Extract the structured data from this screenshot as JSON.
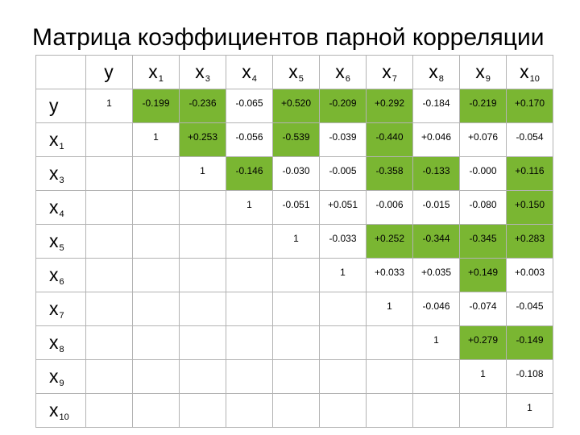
{
  "title": "Матрица коэффициентов парной корреляции",
  "highlight_color": "#7ab632",
  "variables": [
    {
      "sym": "y",
      "sub": ""
    },
    {
      "sym": "x",
      "sub": "1"
    },
    {
      "sym": "x",
      "sub": "3"
    },
    {
      "sym": "x",
      "sub": "4"
    },
    {
      "sym": "x",
      "sub": "5"
    },
    {
      "sym": "x",
      "sub": "6"
    },
    {
      "sym": "x",
      "sub": "7"
    },
    {
      "sym": "x",
      "sub": "8"
    },
    {
      "sym": "x",
      "sub": "9"
    },
    {
      "sym": "x",
      "sub": "10"
    }
  ],
  "rows": [
    [
      {
        "v": "1",
        "hl": false
      },
      {
        "v": "-0.199",
        "hl": true
      },
      {
        "v": "-0.236",
        "hl": true
      },
      {
        "v": "-0.065",
        "hl": false
      },
      {
        "v": "+0.520",
        "hl": true
      },
      {
        "v": "-0.209",
        "hl": true
      },
      {
        "v": "+0.292",
        "hl": true
      },
      {
        "v": "-0.184",
        "hl": false
      },
      {
        "v": "-0.219",
        "hl": true
      },
      {
        "v": "+0.170",
        "hl": true
      }
    ],
    [
      {
        "v": "",
        "hl": false
      },
      {
        "v": "1",
        "hl": false
      },
      {
        "v": "+0.253",
        "hl": true
      },
      {
        "v": "-0.056",
        "hl": false
      },
      {
        "v": "-0.539",
        "hl": true
      },
      {
        "v": "-0.039",
        "hl": false
      },
      {
        "v": "-0.440",
        "hl": true
      },
      {
        "v": "+0.046",
        "hl": false
      },
      {
        "v": "+0.076",
        "hl": false
      },
      {
        "v": "-0.054",
        "hl": false
      }
    ],
    [
      {
        "v": "",
        "hl": false
      },
      {
        "v": "",
        "hl": false
      },
      {
        "v": "1",
        "hl": false
      },
      {
        "v": "-0.146",
        "hl": true
      },
      {
        "v": "-0.030",
        "hl": false
      },
      {
        "v": "-0.005",
        "hl": false
      },
      {
        "v": "-0.358",
        "hl": true
      },
      {
        "v": "-0.133",
        "hl": true
      },
      {
        "v": "-0.000",
        "hl": false
      },
      {
        "v": "+0.116",
        "hl": true
      }
    ],
    [
      {
        "v": "",
        "hl": false
      },
      {
        "v": "",
        "hl": false
      },
      {
        "v": "",
        "hl": false
      },
      {
        "v": "1",
        "hl": false
      },
      {
        "v": "-0.051",
        "hl": false
      },
      {
        "v": "+0.051",
        "hl": false
      },
      {
        "v": "-0.006",
        "hl": false
      },
      {
        "v": "-0.015",
        "hl": false
      },
      {
        "v": "-0.080",
        "hl": false
      },
      {
        "v": "+0.150",
        "hl": true
      }
    ],
    [
      {
        "v": "",
        "hl": false
      },
      {
        "v": "",
        "hl": false
      },
      {
        "v": "",
        "hl": false
      },
      {
        "v": "",
        "hl": false
      },
      {
        "v": "1",
        "hl": false
      },
      {
        "v": "-0.033",
        "hl": false
      },
      {
        "v": "+0.252",
        "hl": true
      },
      {
        "v": "-0.344",
        "hl": true
      },
      {
        "v": "-0.345",
        "hl": true
      },
      {
        "v": "+0.283",
        "hl": true
      }
    ],
    [
      {
        "v": "",
        "hl": false
      },
      {
        "v": "",
        "hl": false
      },
      {
        "v": "",
        "hl": false
      },
      {
        "v": "",
        "hl": false
      },
      {
        "v": "",
        "hl": false
      },
      {
        "v": "1",
        "hl": false
      },
      {
        "v": "+0.033",
        "hl": false
      },
      {
        "v": "+0.035",
        "hl": false
      },
      {
        "v": "+0.149",
        "hl": true
      },
      {
        "v": "+0.003",
        "hl": false
      }
    ],
    [
      {
        "v": "",
        "hl": false
      },
      {
        "v": "",
        "hl": false
      },
      {
        "v": "",
        "hl": false
      },
      {
        "v": "",
        "hl": false
      },
      {
        "v": "",
        "hl": false
      },
      {
        "v": "",
        "hl": false
      },
      {
        "v": "1",
        "hl": false
      },
      {
        "v": "-0.046",
        "hl": false
      },
      {
        "v": "-0.074",
        "hl": false
      },
      {
        "v": "-0.045",
        "hl": false
      }
    ],
    [
      {
        "v": "",
        "hl": false
      },
      {
        "v": "",
        "hl": false
      },
      {
        "v": "",
        "hl": false
      },
      {
        "v": "",
        "hl": false
      },
      {
        "v": "",
        "hl": false
      },
      {
        "v": "",
        "hl": false
      },
      {
        "v": "",
        "hl": false
      },
      {
        "v": "1",
        "hl": false
      },
      {
        "v": "+0.279",
        "hl": true
      },
      {
        "v": "-0.149",
        "hl": true
      }
    ],
    [
      {
        "v": "",
        "hl": false
      },
      {
        "v": "",
        "hl": false
      },
      {
        "v": "",
        "hl": false
      },
      {
        "v": "",
        "hl": false
      },
      {
        "v": "",
        "hl": false
      },
      {
        "v": "",
        "hl": false
      },
      {
        "v": "",
        "hl": false
      },
      {
        "v": "",
        "hl": false
      },
      {
        "v": "1",
        "hl": false
      },
      {
        "v": "-0.108",
        "hl": false
      }
    ],
    [
      {
        "v": "",
        "hl": false
      },
      {
        "v": "",
        "hl": false
      },
      {
        "v": "",
        "hl": false
      },
      {
        "v": "",
        "hl": false
      },
      {
        "v": "",
        "hl": false
      },
      {
        "v": "",
        "hl": false
      },
      {
        "v": "",
        "hl": false
      },
      {
        "v": "",
        "hl": false
      },
      {
        "v": "",
        "hl": false
      },
      {
        "v": "1",
        "hl": false
      }
    ]
  ]
}
